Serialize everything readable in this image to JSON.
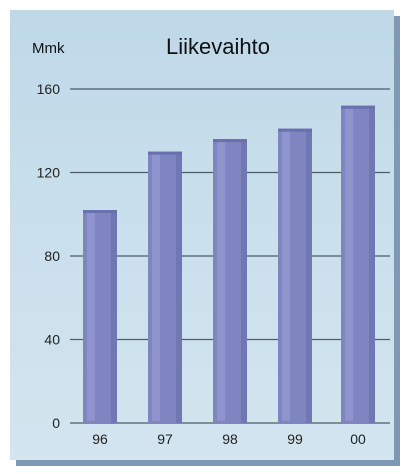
{
  "chart_data": {
    "type": "bar",
    "title": "Liikevaihto",
    "ylabel": "Mmk",
    "xlabel": "",
    "categories": [
      "96",
      "97",
      "98",
      "99",
      "00"
    ],
    "values": [
      102,
      130,
      136,
      141,
      152
    ],
    "ylim": [
      0,
      160
    ],
    "yticks": [
      0,
      40,
      80,
      120,
      160
    ],
    "grid": true,
    "colors": {
      "bar": "#7f85c0",
      "bar_light": "#9aa0d3",
      "bar_dark": "#6a70ad",
      "grid": "#4d5b6a",
      "panel": "#c9dfec",
      "shadow": "#7f98b3"
    }
  }
}
